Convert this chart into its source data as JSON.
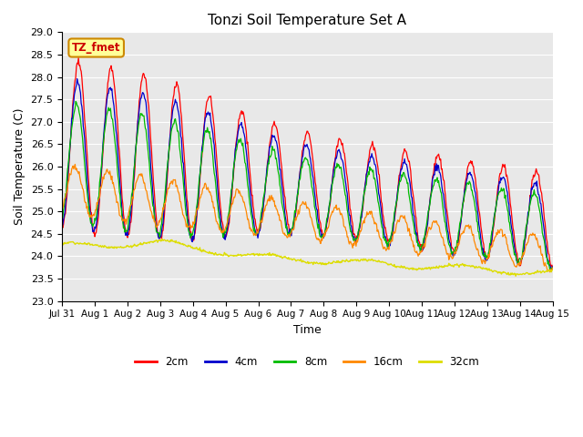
{
  "title": "Tonzi Soil Temperature Set A",
  "xlabel": "Time",
  "ylabel": "Soil Temperature (C)",
  "ylim": [
    23.0,
    29.0
  ],
  "yticks": [
    23.0,
    23.5,
    24.0,
    24.5,
    25.0,
    25.5,
    26.0,
    26.5,
    27.0,
    27.5,
    28.0,
    28.5,
    29.0
  ],
  "xtick_labels": [
    "Jul 31",
    "Aug 1",
    "Aug 2",
    "Aug 3",
    "Aug 4",
    "Aug 5",
    "Aug 6",
    "Aug 7",
    "Aug 8",
    "Aug 9",
    "Aug 10",
    "Aug 11",
    "Aug 12",
    "Aug 13",
    "Aug 14",
    "Aug 15"
  ],
  "colors": {
    "2cm": "#ff0000",
    "4cm": "#0000cc",
    "8cm": "#00bb00",
    "16cm": "#ff8800",
    "32cm": "#dddd00"
  },
  "annotation_text": "TZ_fmet",
  "annotation_color": "#cc0000",
  "annotation_bg": "#ffff99",
  "annotation_border": "#cc8800",
  "plot_bg": "#e8e8e8",
  "fig_bg": "#ffffff",
  "n_days": 15,
  "pts_per_day": 48
}
